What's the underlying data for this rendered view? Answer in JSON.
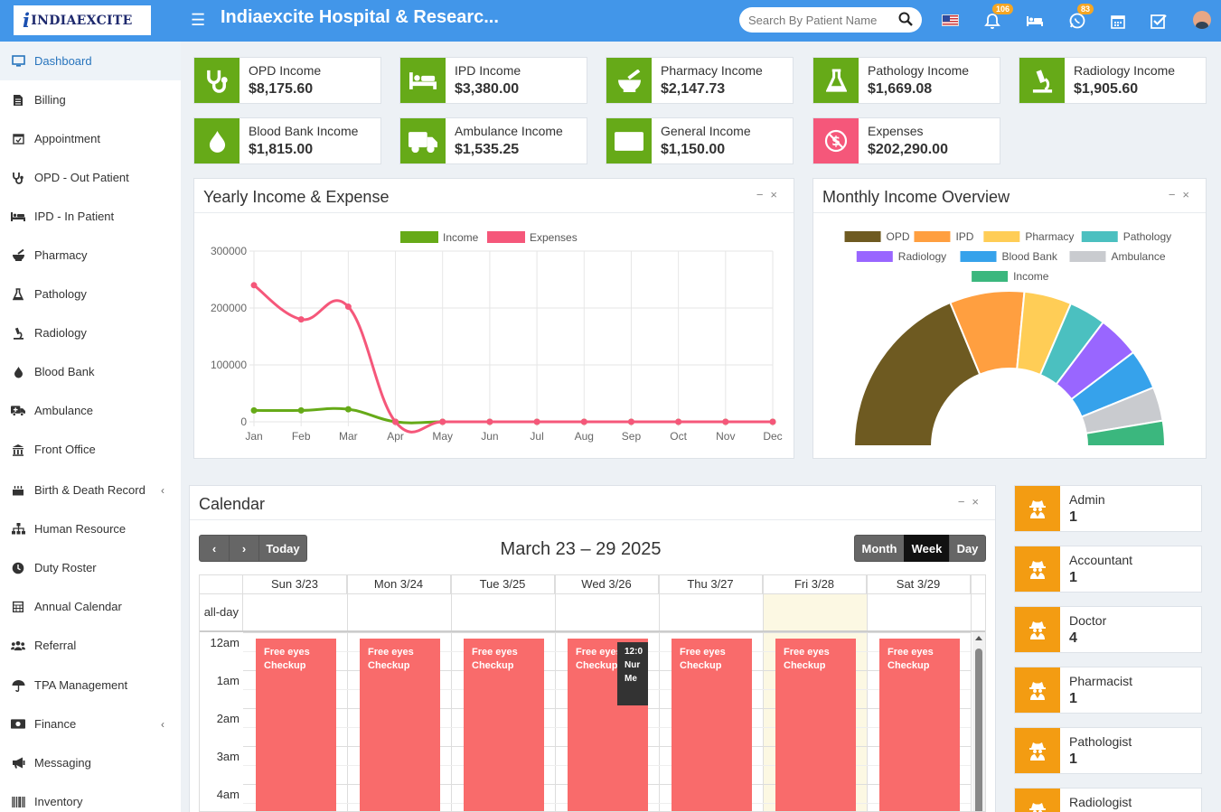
{
  "brand": {
    "logo_mark": "i",
    "logo_text": "INDIAEXCITE",
    "app_title": "Indiaexcite Hospital & Researc..."
  },
  "search": {
    "placeholder": "Search By Patient Name"
  },
  "header_badges": {
    "notifications": "106",
    "whatsapp": "83"
  },
  "sidebar": {
    "items": [
      {
        "label": "Dashboard",
        "icon": "monitor-icon"
      },
      {
        "label": "Billing",
        "icon": "file-icon"
      },
      {
        "label": "Appointment",
        "icon": "calendar-check-icon"
      },
      {
        "label": "OPD - Out Patient",
        "icon": "stethoscope-icon"
      },
      {
        "label": "IPD - In Patient",
        "icon": "bed-icon"
      },
      {
        "label": "Pharmacy",
        "icon": "mortar-icon"
      },
      {
        "label": "Pathology",
        "icon": "flask-icon"
      },
      {
        "label": "Radiology",
        "icon": "microscope-icon"
      },
      {
        "label": "Blood Bank",
        "icon": "drop-icon"
      },
      {
        "label": "Ambulance",
        "icon": "ambulance-icon"
      },
      {
        "label": "Front Office",
        "icon": "building-icon"
      },
      {
        "label": "Birth & Death Record",
        "icon": "cake-icon",
        "arrow": "‹"
      },
      {
        "label": "Human Resource",
        "icon": "sitemap-icon"
      },
      {
        "label": "Duty Roster",
        "icon": "clock-icon"
      },
      {
        "label": "Annual Calendar",
        "icon": "calendar-icon"
      },
      {
        "label": "Referral",
        "icon": "users-icon"
      },
      {
        "label": "TPA Management",
        "icon": "umbrella-icon"
      },
      {
        "label": "Finance",
        "icon": "money-icon",
        "arrow": "‹"
      },
      {
        "label": "Messaging",
        "icon": "bullhorn-icon"
      },
      {
        "label": "Inventory",
        "icon": "barcode-icon"
      }
    ]
  },
  "income_cards": [
    {
      "label": "OPD Income",
      "value": "$8,175.60",
      "icon": "stethoscope-icon",
      "color": "#66aa18"
    },
    {
      "label": "IPD Income",
      "value": "$3,380.00",
      "icon": "bed-icon",
      "color": "#66aa18"
    },
    {
      "label": "Pharmacy Income",
      "value": "$2,147.73",
      "icon": "mortar-icon",
      "color": "#66aa18"
    },
    {
      "label": "Pathology Income",
      "value": "$1,669.08",
      "icon": "flask-icon",
      "color": "#66aa18"
    },
    {
      "label": "Radiology Income",
      "value": "$1,905.60",
      "icon": "microscope-icon",
      "color": "#66aa18"
    },
    {
      "label": "Blood Bank Income",
      "value": "$1,815.00",
      "icon": "drop-icon",
      "color": "#66aa18"
    },
    {
      "label": "Ambulance Income",
      "value": "$1,535.25",
      "icon": "ambulance-icon",
      "color": "#66aa18"
    },
    {
      "label": "General Income",
      "value": "$1,150.00",
      "icon": "money-icon",
      "color": "#66aa18"
    },
    {
      "label": "Expenses",
      "value": "$202,290.00",
      "icon": "no-money-icon",
      "color": "#f5577a"
    }
  ],
  "yearly_panel": {
    "title": "Yearly Income & Expense",
    "minimize": "−",
    "close": "×"
  },
  "monthly_panel": {
    "title": "Monthly Income Overview",
    "minimize": "−",
    "close": "×"
  },
  "chart_data": [
    {
      "type": "line",
      "title": "Yearly Income & Expense",
      "x": [
        "Jan",
        "Feb",
        "Mar",
        "Apr",
        "May",
        "Jun",
        "Jul",
        "Aug",
        "Sep",
        "Oct",
        "Nov",
        "Dec"
      ],
      "ylim": [
        0,
        300000
      ],
      "yticks": [
        "300000",
        "200000",
        "100000",
        "0"
      ],
      "series": [
        {
          "name": "Income",
          "color": "#66aa18",
          "values": [
            20000,
            20000,
            22000,
            0,
            0,
            0,
            0,
            0,
            0,
            0,
            0,
            0
          ]
        },
        {
          "name": "Expenses",
          "color": "#f5577a",
          "values": [
            240000,
            180000,
            202290,
            0,
            0,
            0,
            0,
            0,
            0,
            0,
            0,
            0
          ]
        }
      ],
      "legend": "top"
    },
    {
      "type": "pie",
      "variant": "half-doughnut",
      "title": "Monthly Income Overview",
      "categories": [
        "OPD",
        "IPD",
        "Pharmacy",
        "Pathology",
        "Radiology",
        "Blood Bank",
        "Ambulance",
        "Income"
      ],
      "values": [
        8175.6,
        3380.0,
        2147.73,
        1669.08,
        1905.6,
        1815.0,
        1535.25,
        1150.0
      ],
      "colors": [
        "#6e5a21",
        "#ff9f40",
        "#ffcd56",
        "#4bc0c0",
        "#9966ff",
        "#36a2eb",
        "#c9cbcf",
        "#3bb77e"
      ],
      "legend": "top"
    }
  ],
  "calendar": {
    "title": "Calendar",
    "minimize": "−",
    "close": "×",
    "range_title": "March 23 – 29 2025",
    "prev": "‹",
    "next": "›",
    "today": "Today",
    "views": [
      "Month",
      "Week",
      "Day"
    ],
    "active_view": "Week",
    "days": [
      "Sun 3/23",
      "Mon 3/24",
      "Tue 3/25",
      "Wed 3/26",
      "Thu 3/27",
      "Fri 3/28",
      "Sat 3/29"
    ],
    "allday_label": "all-day",
    "time_labels": [
      "12am",
      "1am",
      "2am",
      "3am",
      "4am"
    ],
    "event_text": "Free eyes Checkup",
    "overlap_event": {
      "time": "12:0",
      "line1": "Nur",
      "line2": "Me"
    }
  },
  "role_cards": [
    {
      "label": "Admin",
      "value": "1"
    },
    {
      "label": "Accountant",
      "value": "1"
    },
    {
      "label": "Doctor",
      "value": "4"
    },
    {
      "label": "Pharmacist",
      "value": "1"
    },
    {
      "label": "Pathologist",
      "value": "1"
    },
    {
      "label": "Radiologist",
      "value": ""
    }
  ]
}
